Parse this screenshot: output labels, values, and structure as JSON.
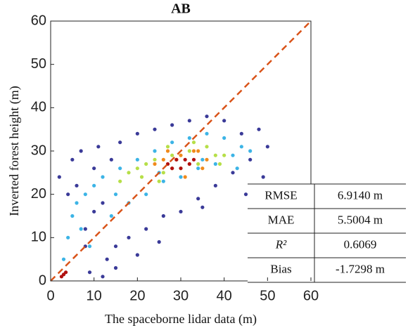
{
  "chart_data": {
    "type": "scatter",
    "title": "AB",
    "xlabel": "The spaceborne lidar data (m)",
    "ylabel": "Inverted forest height (m)",
    "xlim": [
      0,
      60
    ],
    "ylim": [
      0,
      60
    ],
    "xticks": [
      0,
      10,
      20,
      30,
      40,
      50,
      60
    ],
    "yticks": [
      0,
      10,
      20,
      30,
      40,
      50,
      60
    ],
    "reference_line": {
      "color": "#d9541a",
      "dashed": true
    },
    "series": [
      {
        "color": "#3a3a98",
        "x": [
          2,
          4,
          5,
          7,
          8,
          9,
          10,
          11,
          12,
          13,
          14,
          15,
          16,
          18,
          20,
          22,
          24,
          26,
          28,
          30,
          32,
          34,
          36,
          38,
          40,
          42,
          44,
          46,
          48,
          50,
          6,
          10,
          15,
          20,
          25,
          35,
          45,
          49,
          12,
          8
        ],
        "y": [
          24,
          20,
          28,
          30,
          12,
          2,
          26,
          31,
          1,
          5,
          28,
          8,
          32,
          10,
          34,
          12,
          35,
          15,
          36,
          16,
          37,
          19,
          38,
          22,
          37,
          25,
          34,
          28,
          35,
          31,
          22,
          16,
          3,
          6,
          9,
          17,
          20,
          24,
          18,
          8
        ]
      },
      {
        "color": "#3cb4e6",
        "x": [
          3,
          4,
          5,
          6,
          8,
          10,
          12,
          14,
          16,
          18,
          20,
          22,
          24,
          26,
          28,
          30,
          32,
          34,
          36,
          38,
          40,
          42,
          44,
          46,
          7,
          9,
          15,
          25,
          35,
          43
        ],
        "y": [
          5,
          10,
          15,
          18,
          20,
          22,
          24,
          15,
          26,
          18,
          28,
          20,
          30,
          23,
          32,
          24,
          33,
          26,
          34,
          27,
          33,
          29,
          31,
          30,
          12,
          8,
          20,
          25,
          28,
          26
        ]
      },
      {
        "color": "#b6df48",
        "x": [
          16,
          18,
          20,
          22,
          24,
          26,
          28,
          30,
          32,
          34,
          36,
          38,
          40,
          21,
          27,
          33,
          39,
          25
        ],
        "y": [
          23,
          25,
          26,
          27,
          28,
          25,
          29,
          26,
          30,
          27,
          31,
          29,
          29,
          24,
          31,
          32,
          27,
          23
        ]
      },
      {
        "color": "#f08a1c",
        "x": [
          24,
          26,
          28,
          30,
          32,
          34,
          36,
          27,
          31,
          35,
          29,
          33
        ],
        "y": [
          27,
          28,
          26,
          29,
          27,
          30,
          28,
          30,
          24,
          26,
          28,
          30
        ]
      },
      {
        "color": "#b01010",
        "x": [
          27,
          29,
          30,
          31,
          33,
          28,
          32,
          3,
          2.5,
          3.5
        ],
        "y": [
          27,
          28,
          26,
          28,
          28,
          26,
          27,
          1.5,
          1,
          2
        ]
      }
    ]
  },
  "stats_table": {
    "rows": [
      [
        "RMSE",
        "6.9140 m"
      ],
      [
        "MAE",
        "5.5004 m"
      ],
      [
        "R²",
        "0.6069"
      ],
      [
        "Bias",
        "-1.7298 m"
      ]
    ]
  }
}
